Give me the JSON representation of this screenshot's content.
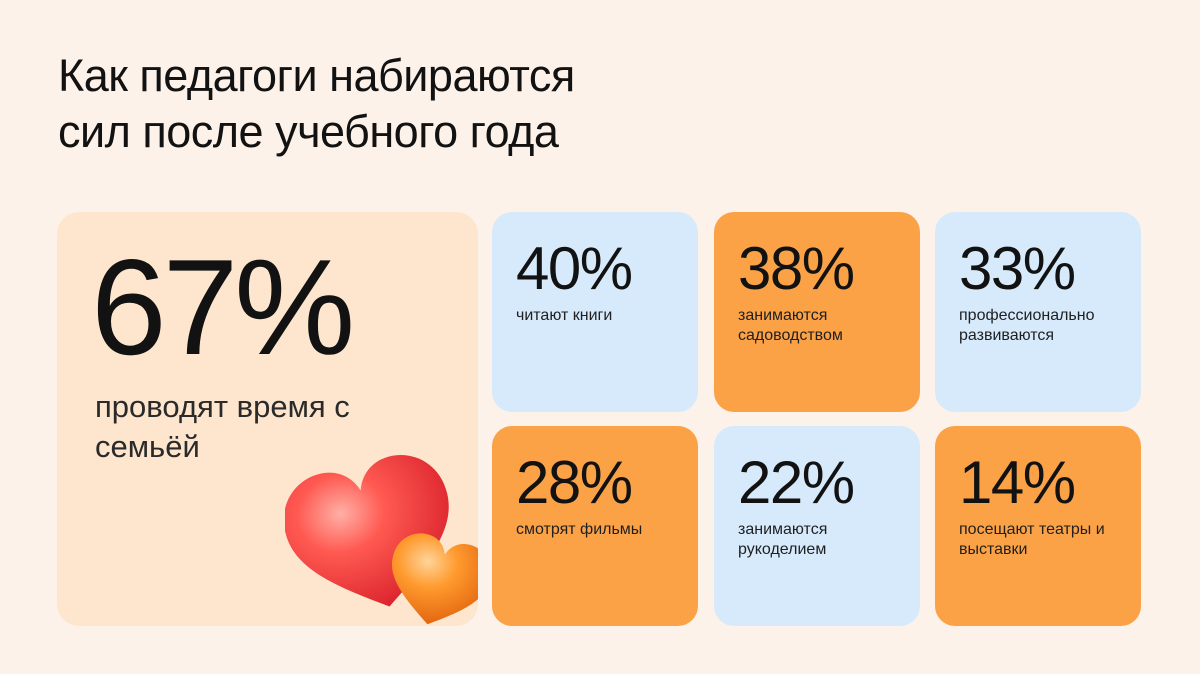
{
  "title": {
    "line1": "Как педагоги набираются",
    "line2": "сил после учебного года"
  },
  "colors": {
    "background": "#fcf2ea",
    "peach": "#fde6cd",
    "blue": "#d6eafb",
    "orange": "#fba247"
  },
  "chart_data": {
    "type": "table",
    "title": "Как педагоги набираются сил после учебного года",
    "unit": "%",
    "highlight": {
      "value": "67%",
      "label": "проводят время с семьёй",
      "color": "peach",
      "icon": "hearts-icon"
    },
    "items": [
      {
        "value": "40%",
        "label": "читают книги",
        "color": "blue"
      },
      {
        "value": "38%",
        "label": "занимаются садоводством",
        "color": "orange"
      },
      {
        "value": "33%",
        "label": "профессионально развиваются",
        "color": "blue"
      },
      {
        "value": "28%",
        "label": "смотрят фильмы",
        "color": "orange"
      },
      {
        "value": "22%",
        "label": "занимаются рукоделием",
        "color": "blue"
      },
      {
        "value": "14%",
        "label": "посещают театры и выставки",
        "color": "orange"
      }
    ]
  }
}
